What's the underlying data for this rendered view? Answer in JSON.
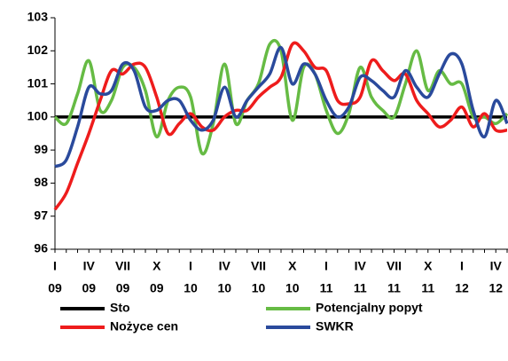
{
  "chart_data": {
    "type": "line",
    "categories": [
      [
        "I",
        "09"
      ],
      null,
      null,
      [
        "IV",
        "09"
      ],
      null,
      null,
      [
        "VII",
        "09"
      ],
      null,
      null,
      [
        "X",
        "09"
      ],
      null,
      null,
      [
        "I",
        "10"
      ],
      null,
      null,
      [
        "IV",
        "10"
      ],
      null,
      null,
      [
        "VII",
        "10"
      ],
      null,
      null,
      [
        "X",
        "10"
      ],
      null,
      null,
      [
        "I",
        "11"
      ],
      null,
      null,
      [
        "IV",
        "11"
      ],
      null,
      null,
      [
        "VII",
        "11"
      ],
      null,
      null,
      [
        "X",
        "11"
      ],
      null,
      null,
      [
        "I",
        "12"
      ],
      null,
      null,
      [
        "IV",
        "12"
      ],
      null
    ],
    "series": [
      {
        "name": "Sto",
        "color": "#000000",
        "values": [
          100,
          100,
          100,
          100,
          100,
          100,
          100,
          100,
          100,
          100,
          100,
          100,
          100,
          100,
          100,
          100,
          100,
          100,
          100,
          100,
          100,
          100,
          100,
          100,
          100,
          100,
          100,
          100,
          100,
          100,
          100,
          100,
          100,
          100,
          100,
          100,
          100,
          100,
          100,
          100,
          100
        ]
      },
      {
        "name": "Potencjalny popyt",
        "color": "#66bb44",
        "values": [
          100.0,
          99.8,
          100.7,
          101.7,
          100.2,
          100.5,
          101.5,
          101.5,
          100.8,
          99.4,
          100.5,
          100.9,
          100.6,
          98.9,
          99.8,
          101.6,
          99.8,
          100.5,
          101.0,
          102.2,
          102.0,
          99.9,
          101.5,
          101.3,
          100.2,
          99.5,
          100.1,
          101.5,
          100.6,
          100.2,
          100.0,
          101.0,
          102.0,
          100.8,
          101.4,
          101.0,
          101.0,
          100.0,
          100.0,
          99.8,
          100.1
        ]
      },
      {
        "name": "Nożyce cen",
        "color": "#ee1c1c",
        "values": [
          97.2,
          97.7,
          98.6,
          99.5,
          100.5,
          101.4,
          101.3,
          101.6,
          101.5,
          100.6,
          99.5,
          99.8,
          100.1,
          99.7,
          99.6,
          100.0,
          100.2,
          100.2,
          100.6,
          100.9,
          101.2,
          102.2,
          102.0,
          101.5,
          101.4,
          100.5,
          100.4,
          100.6,
          101.7,
          101.4,
          101.1,
          101.3,
          100.5,
          100.1,
          99.7,
          99.9,
          100.3,
          99.7,
          100.1,
          99.6,
          99.6
        ]
      },
      {
        "name": "SWKR",
        "color": "#2a4a9c",
        "values": [
          98.5,
          98.7,
          99.7,
          100.9,
          100.7,
          100.8,
          101.6,
          101.4,
          100.3,
          100.2,
          100.5,
          100.5,
          99.9,
          99.6,
          99.9,
          100.9,
          100.0,
          100.5,
          100.9,
          101.3,
          102.1,
          101.0,
          101.6,
          101.3,
          100.5,
          100.0,
          100.3,
          101.2,
          101.1,
          100.8,
          100.6,
          101.4,
          100.9,
          100.6,
          101.3,
          101.9,
          101.6,
          100.2,
          99.4,
          100.5,
          99.8
        ]
      }
    ],
    "ylim": [
      96,
      103
    ],
    "yticks": [
      96,
      97,
      98,
      99,
      100,
      101,
      102,
      103
    ],
    "grid": false
  }
}
